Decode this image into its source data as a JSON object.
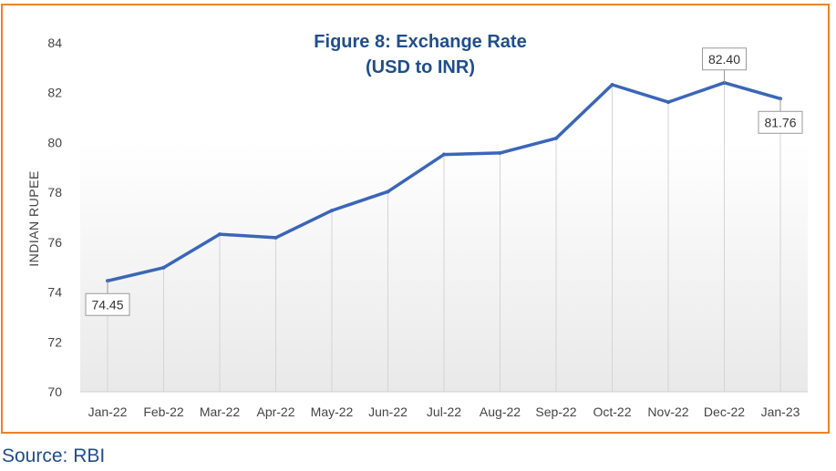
{
  "chart_data": {
    "type": "line",
    "title_line1": "Figure 8: Exchange Rate",
    "title_line2": "(USD to INR)",
    "ylabel": "INDIAN RUPEE",
    "xlabel": "",
    "categories": [
      "Jan-22",
      "Feb-22",
      "Mar-22",
      "Apr-22",
      "May-22",
      "Jun-22",
      "Jul-22",
      "Aug-22",
      "Sep-22",
      "Oct-22",
      "Nov-22",
      "Dec-22",
      "Jan-23"
    ],
    "series": [
      {
        "name": "",
        "values": [
          74.45,
          74.98,
          76.32,
          76.18,
          77.27,
          78.03,
          79.52,
          79.58,
          80.17,
          82.32,
          81.62,
          82.4,
          81.76
        ]
      }
    ],
    "ylim": [
      70,
      84
    ],
    "yticks": [
      70,
      72,
      74,
      76,
      78,
      80,
      82,
      84
    ],
    "data_labels": [
      {
        "index": 0,
        "text": "74.45"
      },
      {
        "index": 11,
        "text": "82.40"
      },
      {
        "index": 12,
        "text": "81.76"
      }
    ],
    "grid": "vertical",
    "line_color": "#3a66b8",
    "title_color": "#1f4e8c",
    "frame_color": "#e8822a"
  },
  "source": "Source: RBI"
}
